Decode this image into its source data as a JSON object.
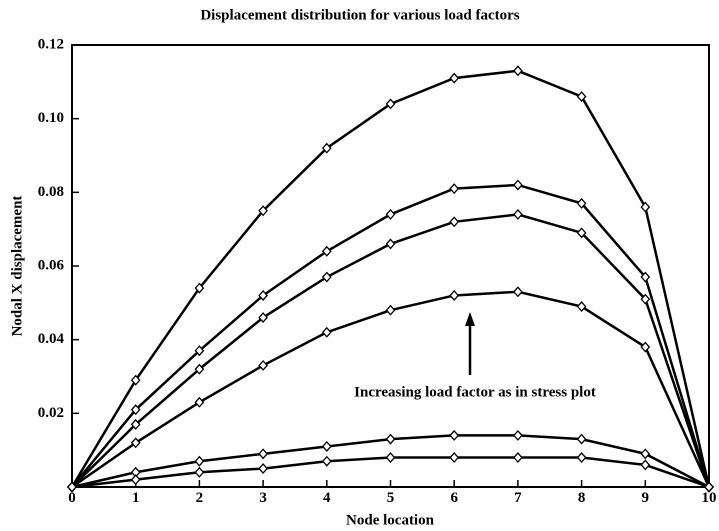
{
  "chart_data": {
    "type": "line",
    "title": "Displacement distribution for various load factors",
    "xlabel": "Node location",
    "ylabel": "Nodal X displacement",
    "annotation": "Increasing load factor as in stress plot",
    "x": [
      0,
      1,
      2,
      3,
      4,
      5,
      6,
      7,
      8,
      9,
      10
    ],
    "series": [
      {
        "color": "#000000",
        "values": [
          0,
          0.029,
          0.054,
          0.075,
          0.092,
          0.104,
          0.111,
          0.113,
          0.106,
          0.076,
          0
        ]
      },
      {
        "color": "#000000",
        "values": [
          0,
          0.021,
          0.037,
          0.052,
          0.064,
          0.074,
          0.081,
          0.082,
          0.077,
          0.057,
          0
        ]
      },
      {
        "color": "#000000",
        "values": [
          0,
          0.017,
          0.032,
          0.046,
          0.057,
          0.066,
          0.072,
          0.074,
          0.069,
          0.051,
          0
        ]
      },
      {
        "color": "#000000",
        "values": [
          0,
          0.012,
          0.023,
          0.033,
          0.042,
          0.048,
          0.052,
          0.053,
          0.049,
          0.038,
          0
        ]
      },
      {
        "color": "#000000",
        "values": [
          0,
          0.004,
          0.007,
          0.009,
          0.011,
          0.013,
          0.014,
          0.014,
          0.013,
          0.009,
          0
        ]
      },
      {
        "color": "#000000",
        "values": [
          0,
          0.002,
          0.004,
          0.005,
          0.007,
          0.008,
          0.008,
          0.008,
          0.008,
          0.006,
          0
        ]
      }
    ],
    "xlim": [
      0,
      10
    ],
    "ylim": [
      0,
      0.12
    ],
    "xticks": [
      0,
      1,
      2,
      3,
      4,
      5,
      6,
      7,
      8,
      9,
      10
    ],
    "yticks": [
      0.02,
      0.04,
      0.06,
      0.08,
      {
        "value": 0.1,
        "label": "0.10"
      },
      0.12
    ],
    "marker": "diamond",
    "grid": false
  }
}
